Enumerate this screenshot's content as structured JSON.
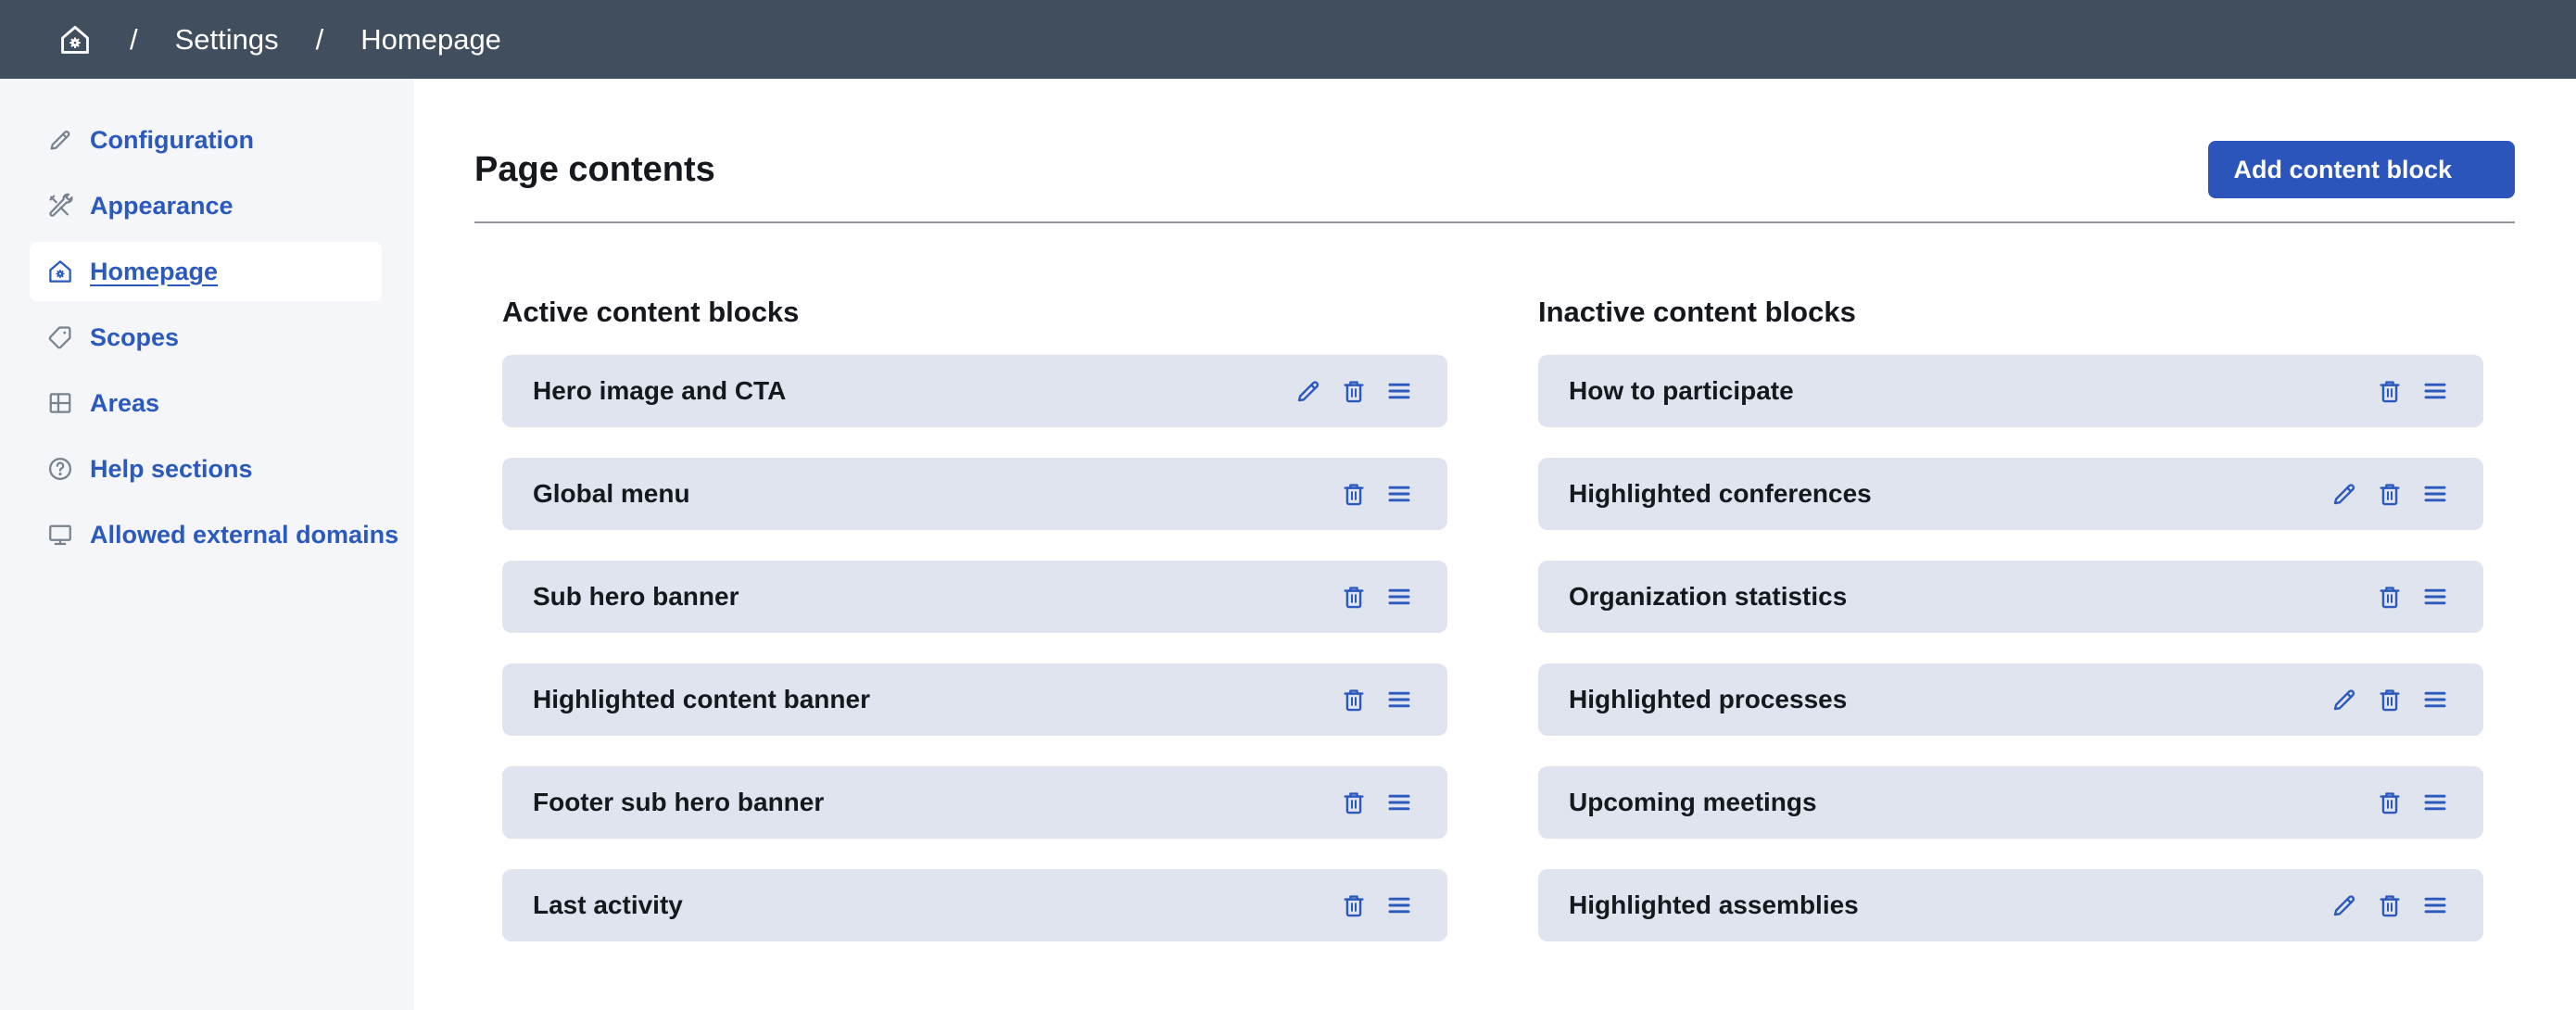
{
  "colors": {
    "topbar_bg": "#414e5e",
    "sidebar_bg": "#f4f6f9",
    "accent_blue": "#2b59be",
    "button_bg": "#2c55bb",
    "row_bg": "#dfe4ee",
    "heading_text": "#15181d",
    "divider": "#8f96a0"
  },
  "topbar": {
    "home_icon": "home-gear-icon",
    "separator": "/",
    "breadcrumb": [
      "Settings",
      "Homepage"
    ]
  },
  "sidebar": {
    "items": [
      {
        "label": "Configuration",
        "icon": "pencil-icon",
        "active": false
      },
      {
        "label": "Appearance",
        "icon": "tools-icon",
        "active": false
      },
      {
        "label": "Homepage",
        "icon": "home-gear-icon",
        "active": true
      },
      {
        "label": "Scopes",
        "icon": "tag-icon",
        "active": false
      },
      {
        "label": "Areas",
        "icon": "grid-icon",
        "active": false
      },
      {
        "label": "Help sections",
        "icon": "question-icon",
        "active": false
      },
      {
        "label": "Allowed external domains",
        "icon": "monitor-icon",
        "active": false
      }
    ]
  },
  "main": {
    "title": "Page contents",
    "add_button": {
      "label": "Add content block",
      "icon": "chevron-down-icon"
    },
    "columns": [
      {
        "heading": "Active content blocks",
        "blocks": [
          {
            "name": "Hero image and CTA",
            "actions": [
              "edit",
              "delete",
              "drag"
            ]
          },
          {
            "name": "Global menu",
            "actions": [
              "delete",
              "drag"
            ]
          },
          {
            "name": "Sub hero banner",
            "actions": [
              "delete",
              "drag"
            ]
          },
          {
            "name": "Highlighted content banner",
            "actions": [
              "delete",
              "drag"
            ]
          },
          {
            "name": "Footer sub hero banner",
            "actions": [
              "delete",
              "drag"
            ]
          },
          {
            "name": "Last activity",
            "actions": [
              "delete",
              "drag"
            ]
          }
        ]
      },
      {
        "heading": "Inactive content blocks",
        "blocks": [
          {
            "name": "How to participate",
            "actions": [
              "delete",
              "drag"
            ]
          },
          {
            "name": "Highlighted conferences",
            "actions": [
              "edit",
              "delete",
              "drag"
            ]
          },
          {
            "name": "Organization statistics",
            "actions": [
              "delete",
              "drag"
            ]
          },
          {
            "name": "Highlighted processes",
            "actions": [
              "edit",
              "delete",
              "drag"
            ]
          },
          {
            "name": "Upcoming meetings",
            "actions": [
              "delete",
              "drag"
            ]
          },
          {
            "name": "Highlighted assemblies",
            "actions": [
              "edit",
              "delete",
              "drag"
            ]
          }
        ]
      }
    ]
  }
}
